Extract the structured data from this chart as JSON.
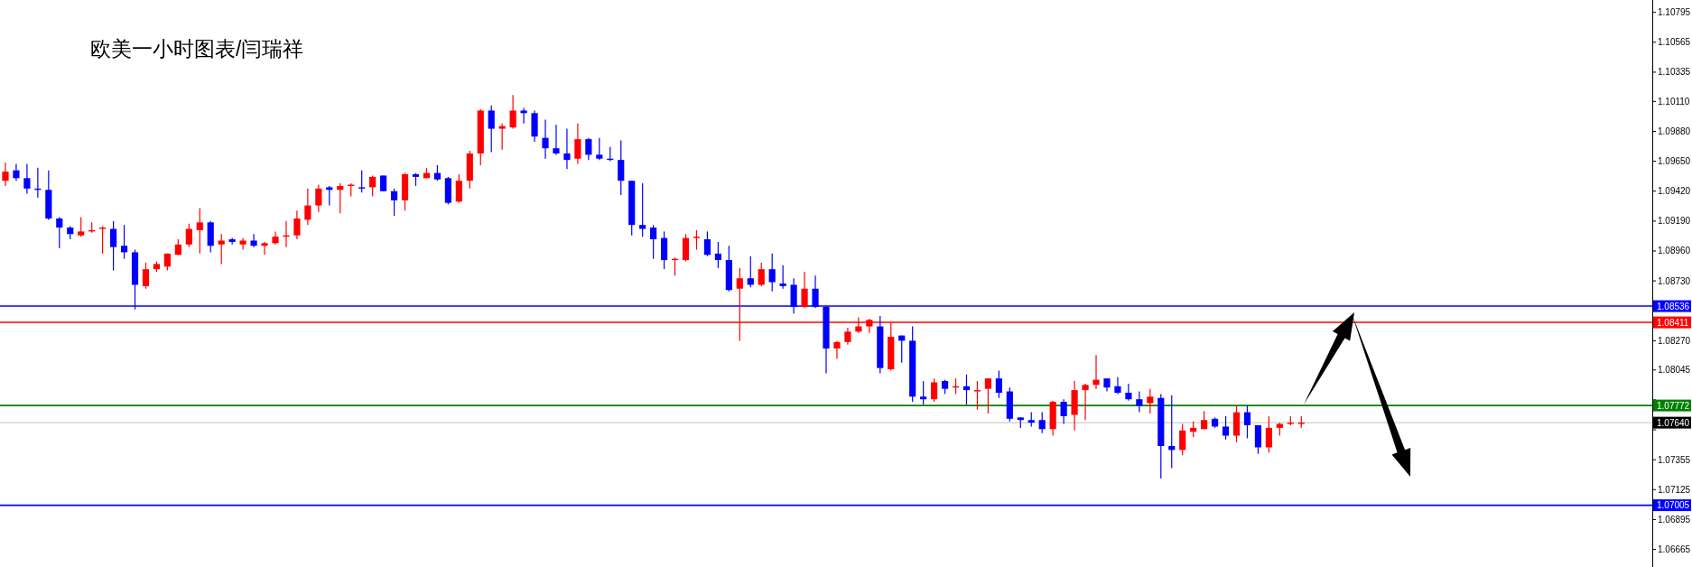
{
  "chart_data": {
    "type": "candlestick",
    "title": "欧美一小时图表/闫瑞祥",
    "categories": [
      null,
      null,
      null,
      null,
      null,
      null,
      null,
      null,
      null,
      null,
      null,
      null,
      null,
      null,
      null,
      null,
      null,
      null,
      null,
      null,
      null,
      null,
      null,
      null,
      null,
      null,
      null,
      null,
      null,
      null,
      null,
      null,
      null,
      null,
      null,
      null,
      null,
      null,
      null,
      null,
      null,
      null,
      null,
      null,
      null,
      null,
      null,
      null,
      null,
      null,
      null,
      null,
      null,
      null,
      null,
      null,
      null,
      null,
      null,
      null,
      null,
      null,
      null,
      null,
      null,
      null,
      null,
      null,
      null,
      null,
      null,
      null,
      null,
      null,
      null,
      null,
      null,
      null,
      null,
      null,
      null,
      null,
      null,
      null,
      null,
      null,
      null,
      null,
      null,
      null,
      null,
      null,
      null,
      null,
      null,
      null,
      null,
      null,
      null,
      null,
      null,
      null,
      null,
      null,
      null,
      null,
      null,
      null,
      null,
      null,
      null,
      null,
      null,
      null,
      null,
      null,
      null,
      null,
      null,
      null,
      null,
      null,
      null,
      null,
      null,
      null,
      null,
      null,
      null,
      null,
      null,
      null,
      null,
      null,
      null,
      null,
      null,
      null,
      null,
      null,
      null,
      null,
      null,
      null,
      null,
      null,
      null,
      null,
      null,
      null,
      null,
      null,
      null
    ],
    "ohlc": [
      [
        1.095,
        1.0964,
        1.0946,
        1.0957
      ],
      [
        1.0958,
        1.0963,
        1.095,
        1.0952
      ],
      [
        1.0952,
        1.0963,
        1.094,
        1.0944
      ],
      [
        1.0944,
        1.096,
        1.0937,
        1.0943
      ],
      [
        1.0943,
        1.0958,
        1.092,
        1.0921
      ],
      [
        1.0921,
        1.0922,
        1.0898,
        1.0914
      ],
      [
        1.0914,
        1.0915,
        1.0905,
        1.0909
      ],
      [
        1.0908,
        1.0922,
        1.0907,
        1.0911
      ],
      [
        1.0911,
        1.0918,
        1.091,
        1.0912
      ],
      [
        1.0913,
        1.0915,
        1.0894,
        1.0914
      ],
      [
        1.0913,
        1.0919,
        1.0881,
        1.0899
      ],
      [
        1.09,
        1.0916,
        1.089,
        1.0895
      ],
      [
        1.0895,
        1.0897,
        1.0851,
        1.087
      ],
      [
        1.0869,
        1.0887,
        1.0867,
        1.0882
      ],
      [
        1.0882,
        1.0888,
        1.088,
        1.0886
      ],
      [
        1.0884,
        1.0894,
        1.0881,
        1.0894
      ],
      [
        1.0893,
        1.0905,
        1.0893,
        1.0901
      ],
      [
        1.0901,
        1.0917,
        1.0899,
        1.0913
      ],
      [
        1.0912,
        1.0929,
        1.0894,
        1.0918
      ],
      [
        1.0918,
        1.0919,
        1.0895,
        1.09
      ],
      [
        1.0901,
        1.0909,
        1.0886,
        1.0904
      ],
      [
        1.0905,
        1.0906,
        1.0901,
        1.0903
      ],
      [
        1.0901,
        1.0906,
        1.0897,
        1.0904
      ],
      [
        1.0904,
        1.0909,
        1.0899,
        1.09
      ],
      [
        1.09,
        1.0903,
        1.0893,
        1.0902
      ],
      [
        1.0902,
        1.0911,
        1.0901,
        1.0907
      ],
      [
        1.0907,
        1.0919,
        1.0899,
        1.0908
      ],
      [
        1.0908,
        1.0927,
        1.0905,
        1.0921
      ],
      [
        1.092,
        1.0944,
        1.0916,
        1.0931
      ],
      [
        1.0931,
        1.0947,
        1.0926,
        1.0944
      ],
      [
        1.0945,
        1.0946,
        1.0931,
        1.0943
      ],
      [
        1.0943,
        1.0948,
        1.0925,
        1.0946
      ],
      [
        1.0946,
        1.0948,
        1.0938,
        1.0947
      ],
      [
        1.0945,
        1.0958,
        1.0941,
        1.0944
      ],
      [
        1.0945,
        1.0954,
        1.0938,
        1.0953
      ],
      [
        1.0954,
        1.0954,
        1.0942,
        1.0942
      ],
      [
        1.0942,
        1.0944,
        1.0923,
        1.0935
      ],
      [
        1.0935,
        1.0956,
        1.0927,
        1.0955
      ],
      [
        1.0955,
        1.0956,
        1.0946,
        1.0953
      ],
      [
        1.0952,
        1.096,
        1.0952,
        1.0956
      ],
      [
        1.0956,
        1.0962,
        1.095,
        1.0951
      ],
      [
        1.0952,
        1.0953,
        1.0932,
        1.0933
      ],
      [
        1.0934,
        1.0955,
        1.0933,
        1.095
      ],
      [
        1.095,
        1.0973,
        1.0944,
        1.0971
      ],
      [
        1.0971,
        1.1005,
        1.0962,
        1.1004
      ],
      [
        1.1004,
        1.1008,
        1.0972,
        1.099
      ],
      [
        1.099,
        1.0994,
        1.0974,
        1.0992
      ],
      [
        1.0991,
        1.1016,
        1.099,
        1.1004
      ],
      [
        1.1004,
        1.1006,
        1.0994,
        1.1002
      ],
      [
        1.1002,
        1.1004,
        1.098,
        1.0984
      ],
      [
        1.0983,
        1.0997,
        1.0967,
        1.0975
      ],
      [
        1.0975,
        1.0993,
        1.097,
        1.0971
      ],
      [
        1.0971,
        1.099,
        1.0959,
        1.0966
      ],
      [
        1.0967,
        1.0994,
        1.0963,
        1.0982
      ],
      [
        1.0982,
        1.0983,
        1.0966,
        1.097
      ],
      [
        1.097,
        1.0983,
        1.0966,
        1.0967
      ],
      [
        1.0967,
        1.0976,
        1.0965,
        1.0966
      ],
      [
        1.0966,
        1.0981,
        1.0939,
        1.095
      ],
      [
        1.095,
        1.095,
        1.0908,
        1.0916
      ],
      [
        1.0916,
        1.0948,
        1.0907,
        1.0913
      ],
      [
        1.0914,
        1.0916,
        1.089,
        1.0905
      ],
      [
        1.0906,
        1.0911,
        1.0882,
        1.0889
      ],
      [
        1.0889,
        1.0891,
        1.0877,
        1.089
      ],
      [
        1.0889,
        1.0909,
        1.0888,
        1.0906
      ],
      [
        1.0906,
        1.0912,
        1.0897,
        1.0907
      ],
      [
        1.0905,
        1.0911,
        1.0892,
        1.0893
      ],
      [
        1.0894,
        1.0903,
        1.0883,
        1.0889
      ],
      [
        1.0889,
        1.09,
        1.0865,
        1.0866
      ],
      [
        1.0867,
        1.0883,
        1.0827,
        1.0875
      ],
      [
        1.0875,
        1.0892,
        1.0868,
        1.087
      ],
      [
        1.087,
        1.0887,
        1.0869,
        1.0882
      ],
      [
        1.0882,
        1.0894,
        1.0865,
        1.0872
      ],
      [
        1.0871,
        1.0885,
        1.0867,
        1.0869
      ],
      [
        1.087,
        1.0875,
        1.0848,
        1.0853
      ],
      [
        1.0853,
        1.088,
        1.0852,
        1.0867
      ],
      [
        1.0867,
        1.0877,
        1.0852,
        1.0853
      ],
      [
        1.0853,
        1.0854,
        1.0802,
        1.0821
      ],
      [
        1.0821,
        1.0827,
        1.0813,
        1.0826
      ],
      [
        1.0826,
        1.0837,
        1.0824,
        1.0834
      ],
      [
        1.0834,
        1.0845,
        1.0833,
        1.0838
      ],
      [
        1.0838,
        1.0844,
        1.0833,
        1.0843
      ],
      [
        1.0838,
        1.0846,
        1.0802,
        1.0806
      ],
      [
        1.0805,
        1.0841,
        1.0804,
        1.083
      ],
      [
        1.0831,
        1.0831,
        1.081,
        1.0827
      ],
      [
        1.0827,
        1.0838,
        1.078,
        1.0784
      ],
      [
        1.0784,
        1.0796,
        1.0778,
        1.0782
      ],
      [
        1.0782,
        1.0798,
        1.078,
        1.0795
      ],
      [
        1.0796,
        1.0797,
        1.0786,
        1.079
      ],
      [
        1.0791,
        1.0798,
        1.0786,
        1.0792
      ],
      [
        1.0792,
        1.0801,
        1.0778,
        1.0789
      ],
      [
        1.0788,
        1.0796,
        1.0774,
        1.0789
      ],
      [
        1.079,
        1.0798,
        1.0771,
        1.0798
      ],
      [
        1.0798,
        1.0804,
        1.0783,
        1.0787
      ],
      [
        1.0788,
        1.0791,
        1.0765,
        1.0767
      ],
      [
        1.0768,
        1.0768,
        1.076,
        1.0766
      ],
      [
        1.0766,
        1.0772,
        1.0761,
        1.0764
      ],
      [
        1.0766,
        1.0772,
        1.0756,
        1.0759
      ],
      [
        1.0759,
        1.0781,
        1.0754,
        1.078
      ],
      [
        1.078,
        1.0782,
        1.0763,
        1.0769
      ],
      [
        1.077,
        1.0796,
        1.0758,
        1.0789
      ],
      [
        1.0789,
        1.0794,
        1.0766,
        1.0793
      ],
      [
        1.0793,
        1.0816,
        1.079,
        1.0797
      ],
      [
        1.0798,
        1.0798,
        1.0788,
        1.0791
      ],
      [
        1.0792,
        1.0799,
        1.0786,
        1.0787
      ],
      [
        1.0787,
        1.0794,
        1.0781,
        1.0782
      ],
      [
        1.0782,
        1.0788,
        1.0772,
        1.0777
      ],
      [
        1.0779,
        1.079,
        1.0771,
        1.0784
      ],
      [
        1.0783,
        1.0786,
        1.0721,
        1.0746
      ],
      [
        1.0746,
        1.0785,
        1.0729,
        1.0743
      ],
      [
        1.0743,
        1.0763,
        1.0739,
        1.0758
      ],
      [
        1.0757,
        1.0765,
        1.0753,
        1.076
      ],
      [
        1.0759,
        1.0773,
        1.0759,
        1.0766
      ],
      [
        1.0767,
        1.0768,
        1.076,
        1.0761
      ],
      [
        1.0761,
        1.0769,
        1.0751,
        1.0754
      ],
      [
        1.0754,
        1.0777,
        1.0749,
        1.0772
      ],
      [
        1.0772,
        1.0777,
        1.0752,
        1.0762
      ],
      [
        1.0762,
        1.0762,
        1.074,
        1.0745
      ],
      [
        1.0745,
        1.0769,
        1.0741,
        1.076
      ],
      [
        1.076,
        1.0764,
        1.0754,
        1.0763
      ],
      [
        1.0763,
        1.0769,
        1.0762,
        1.0764
      ],
      [
        1.0763,
        1.0769,
        1.076,
        1.0764
      ],
      null,
      null,
      null,
      null,
      null,
      null,
      null,
      null,
      null,
      null,
      null,
      null,
      null,
      null,
      null,
      null,
      null,
      null,
      null,
      null,
      null,
      null,
      null,
      null,
      null,
      null,
      null,
      null,
      null,
      null,
      null,
      null
    ],
    "colors": [
      "#ff0000",
      "#0000ff",
      "#0000ff",
      "#0000ff",
      "#0000ff",
      "#0000ff",
      "#0000ff",
      "#ff0000",
      "#ff0000",
      "#ff0000",
      "#0000ff",
      "#0000ff",
      "#0000ff",
      "#ff0000",
      "#ff0000",
      "#ff0000",
      "#ff0000",
      "#ff0000",
      "#ff0000",
      "#0000ff",
      "#ff0000",
      "#0000ff",
      "#ff0000",
      "#0000ff",
      "#ff0000",
      "#ff0000",
      "#ff0000",
      "#ff0000",
      "#ff0000",
      "#ff0000",
      "#0000ff",
      "#ff0000",
      "#ff0000",
      "#0000ff",
      "#ff0000",
      "#0000ff",
      "#0000ff",
      "#ff0000",
      "#0000ff",
      "#ff0000",
      "#0000ff",
      "#0000ff",
      "#ff0000",
      "#ff0000",
      "#ff0000",
      "#0000ff",
      "#ff0000",
      "#ff0000",
      "#0000ff",
      "#0000ff",
      "#0000ff",
      "#0000ff",
      "#0000ff",
      "#ff0000",
      "#0000ff",
      "#0000ff",
      "#0000ff",
      "#0000ff",
      "#0000ff",
      "#0000ff",
      "#0000ff",
      "#0000ff",
      "#ff0000",
      "#ff0000",
      "#ff0000",
      "#0000ff",
      "#0000ff",
      "#0000ff",
      "#ff0000",
      "#0000ff",
      "#ff0000",
      "#0000ff",
      "#0000ff",
      "#0000ff",
      "#ff0000",
      "#0000ff",
      "#0000ff",
      "#ff0000",
      "#ff0000",
      "#ff0000",
      "#ff0000",
      "#0000ff",
      "#ff0000",
      "#0000ff",
      "#0000ff",
      "#0000ff",
      "#ff0000",
      "#0000ff",
      "#ff0000",
      "#0000ff",
      "#ff0000",
      "#ff0000",
      "#0000ff",
      "#0000ff",
      "#0000ff",
      "#0000ff",
      "#0000ff",
      "#ff0000",
      "#0000ff",
      "#ff0000",
      "#ff0000",
      "#ff0000",
      "#0000ff",
      "#0000ff",
      "#0000ff",
      "#0000ff",
      "#ff0000",
      "#0000ff",
      "#0000ff",
      "#ff0000",
      "#ff0000",
      "#ff0000",
      "#0000ff",
      "#0000ff",
      "#ff0000",
      "#0000ff",
      "#0000ff",
      "#ff0000",
      "#ff0000",
      "#ff0000",
      "#ff0000",
      null,
      null,
      null,
      null,
      null,
      null,
      null,
      null,
      null,
      null,
      null,
      null,
      null,
      null,
      null,
      null,
      null,
      null,
      null,
      null,
      null,
      null,
      null,
      null,
      null,
      null,
      null,
      null,
      null,
      null,
      null,
      null
    ],
    "ylim": [
      1.0653,
      1.1089
    ],
    "yticks": [
      1.10795,
      1.10565,
      1.10335,
      {
        "value": 1.1011,
        "label": "1.10110"
      },
      {
        "value": 1.0988,
        "label": "1.09880"
      },
      {
        "value": 1.0965,
        "label": "1.09650"
      },
      {
        "value": 1.0942,
        "label": "1.09420"
      },
      {
        "value": 1.0919,
        "label": "1.09190"
      },
      {
        "value": 1.0896,
        "label": "1.08960"
      },
      {
        "value": 1.0873,
        "label": "1.08730"
      },
      {
        "value": 1.085,
        "label": null
      },
      {
        "value": 1.0827,
        "label": "1.08270"
      },
      1.08045,
      {
        "value": 1.07815,
        "label": null
      },
      {
        "value": 1.07585,
        "label": null
      },
      1.07355,
      1.07125,
      1.06895,
      1.06665
    ],
    "tick_labels": "y",
    "ref_lines": [
      {
        "axis": "y",
        "value": 1.08536,
        "label": "1.08536",
        "color": "#0000ff"
      },
      {
        "axis": "y",
        "value": 1.08411,
        "label": "1.08411",
        "color": "#ff0000"
      },
      {
        "axis": "y",
        "value": 1.07772,
        "label": "1.07772",
        "color": "#008000"
      },
      {
        "axis": "y",
        "value": 1.0764,
        "label": "1.07640",
        "color": "#c0c0c0"
      },
      {
        "axis": "y",
        "value": 1.07005,
        "label": "1.07005",
        "color": "#0000ff"
      }
    ]
  }
}
